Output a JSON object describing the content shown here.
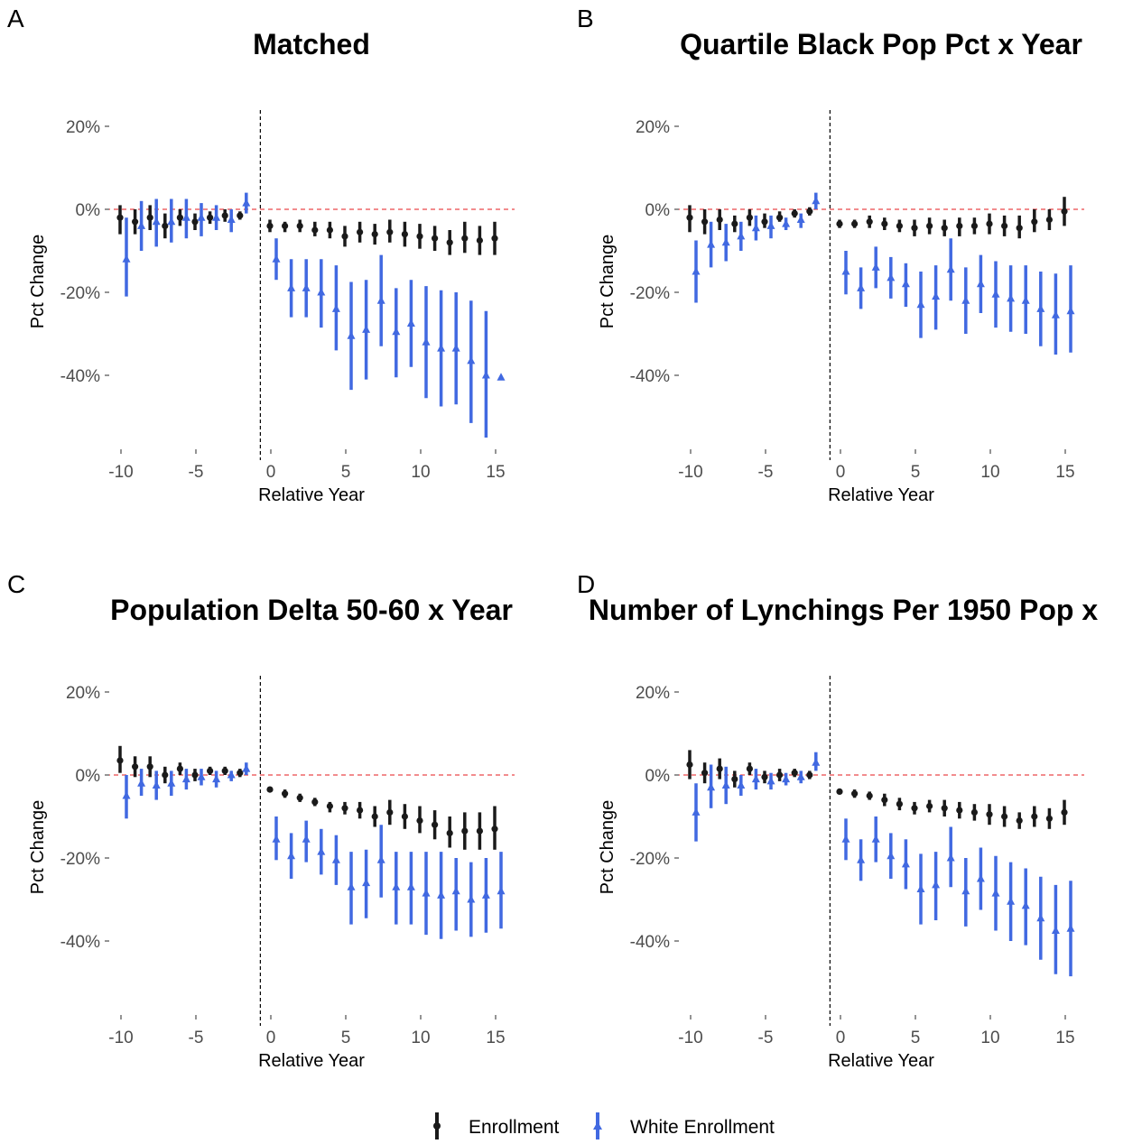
{
  "colors": {
    "enrollment": "#1a1a1a",
    "white_enrollment": "#4169e1",
    "zero_line": "#e41a1c",
    "event_line": "#000000",
    "tick": "#4d4d4d"
  },
  "legend": {
    "items": [
      {
        "label": "Enrollment",
        "color": "#1a1a1a",
        "shape": "circle"
      },
      {
        "label": "White Enrollment",
        "color": "#4169e1",
        "shape": "triangle"
      }
    ]
  },
  "chart_data": [
    {
      "panel": "A",
      "title": "Matched",
      "type": "scatter",
      "xlabel": "Relative Year",
      "ylabel": "Pct Change",
      "xlim": [
        -11,
        16
      ],
      "ylim": [
        -60,
        25
      ],
      "x_ticks": [
        -10,
        -5,
        0,
        5,
        10,
        15
      ],
      "x_tick_labels": [
        "-10",
        "-5",
        "0",
        "5",
        "10",
        "15"
      ],
      "y_ticks": [
        20,
        0,
        -20,
        -40
      ],
      "y_tick_labels": [
        "20%",
        "0%",
        "-20%",
        "-40%"
      ],
      "vline_x": -0.7,
      "hline_y": 0,
      "series": [
        {
          "name": "Enrollment",
          "x": [
            -10,
            -9,
            -8,
            -7,
            -6,
            -5,
            -4,
            -3,
            -2,
            0,
            1,
            2,
            3,
            4,
            5,
            6,
            7,
            8,
            9,
            10,
            11,
            12,
            13,
            14,
            15
          ],
          "y": [
            -2,
            -3,
            -2,
            -4,
            -2,
            -3,
            -2,
            -1.5,
            -1.5,
            -4,
            -4,
            -4,
            -5,
            -5,
            -6.5,
            -5.5,
            -6,
            -5.5,
            -6,
            -6.5,
            -7,
            -8,
            -7,
            -7.5,
            -7
          ],
          "lo": [
            -6,
            -6,
            -5,
            -7,
            -4,
            -5,
            -3.5,
            -3,
            -2.5,
            -5.5,
            -5.5,
            -5.5,
            -6.5,
            -7,
            -9,
            -8,
            -8.5,
            -8,
            -9,
            -9.5,
            -10,
            -11,
            -10.5,
            -11,
            -11
          ],
          "hi": [
            1,
            0,
            1,
            -1,
            0,
            -1,
            -0.5,
            0,
            -0.5,
            -2.5,
            -3,
            -2.5,
            -3,
            -3,
            -4,
            -3,
            -3.5,
            -2.5,
            -3,
            -3.5,
            -4,
            -5,
            -3,
            -4,
            -3
          ]
        },
        {
          "name": "White Enrollment",
          "x": [
            -10,
            -9,
            -8,
            -7,
            -6,
            -5,
            -4,
            -3,
            -2,
            0,
            1,
            2,
            3,
            4,
            5,
            6,
            7,
            8,
            9,
            10,
            11,
            12,
            13,
            14,
            15
          ],
          "y": [
            -12,
            -4,
            -3,
            -3,
            -2,
            -2,
            -2,
            -2.5,
            1.5,
            -12,
            -19,
            -19,
            -20,
            -24,
            -30.5,
            -29,
            -22,
            -29.5,
            -27.5,
            -32,
            -33.5,
            -33.5,
            -36.5,
            -40,
            -40.5
          ],
          "lo": [
            -21,
            -10,
            -9,
            -8,
            -7,
            -6.5,
            -5,
            -5.5,
            -1,
            -17,
            -26,
            -26,
            -28.5,
            -34,
            -43.5,
            -41,
            -33,
            -40.5,
            -38,
            -45.5,
            -47.5,
            -47,
            -51.5,
            -55,
            -40.5
          ],
          "hi": [
            -2,
            2,
            2.5,
            2.5,
            2.5,
            1.5,
            1,
            0,
            4,
            -7,
            -12,
            -12,
            -12,
            -13.5,
            -17.5,
            -17,
            -11,
            -19,
            -17,
            -18.5,
            -19.5,
            -20,
            -22,
            -24.5,
            -40.5
          ]
        }
      ]
    },
    {
      "panel": "B",
      "title": "Quartile Black Pop Pct x Year",
      "type": "scatter",
      "xlabel": "Relative Year",
      "ylabel": "Pct Change",
      "xlim": [
        -11,
        16
      ],
      "ylim": [
        -60,
        25
      ],
      "x_ticks": [
        -10,
        -5,
        0,
        5,
        10,
        15
      ],
      "x_tick_labels": [
        "-10",
        "-5",
        "0",
        "5",
        "10",
        "15"
      ],
      "y_ticks": [
        20,
        0,
        -20,
        -40
      ],
      "y_tick_labels": [
        "20%",
        "0%",
        "-20%",
        "-40%"
      ],
      "vline_x": -0.7,
      "hline_y": 0,
      "series": [
        {
          "name": "Enrollment",
          "x": [
            -10,
            -9,
            -8,
            -7,
            -6,
            -5,
            -4,
            -3,
            -2,
            0,
            1,
            2,
            3,
            4,
            5,
            6,
            7,
            8,
            9,
            10,
            11,
            12,
            13,
            14,
            15
          ],
          "y": [
            -2,
            -3,
            -2.5,
            -3.5,
            -2,
            -3,
            -2,
            -1,
            -0.5,
            -3.5,
            -3.5,
            -3,
            -3.5,
            -4,
            -4.5,
            -4,
            -4.5,
            -4,
            -4,
            -3.5,
            -4,
            -4.5,
            -3,
            -2.5,
            -0.5
          ],
          "lo": [
            -5.5,
            -6,
            -5,
            -5.5,
            -4,
            -4.5,
            -3,
            -2,
            -1.5,
            -4.5,
            -4.5,
            -4.5,
            -5,
            -5.5,
            -6.5,
            -6,
            -6.5,
            -6.5,
            -6,
            -6,
            -6.5,
            -7,
            -5.5,
            -5,
            -4
          ],
          "hi": [
            1,
            0,
            0,
            -1.5,
            0,
            -1,
            -0.5,
            0,
            0.5,
            -2.5,
            -2.5,
            -1.5,
            -2,
            -2.5,
            -2.5,
            -2,
            -2.5,
            -2,
            -2,
            -1,
            -1.5,
            -1.5,
            0,
            0,
            3
          ]
        },
        {
          "name": "White Enrollment",
          "x": [
            -10,
            -9,
            -8,
            -7,
            -6,
            -5,
            -4,
            -3,
            -2,
            0,
            1,
            2,
            3,
            4,
            5,
            6,
            7,
            8,
            9,
            10,
            11,
            12,
            13,
            14,
            15
          ],
          "y": [
            -15,
            -8.5,
            -8,
            -6.5,
            -4.5,
            -4,
            -3.5,
            -2.5,
            2,
            -15,
            -19,
            -14,
            -16.5,
            -18,
            -23,
            -21,
            -14.5,
            -22,
            -18,
            -20.5,
            -21.5,
            -22,
            -24,
            -25.5,
            -24.5
          ],
          "lo": [
            -22.5,
            -14,
            -12.5,
            -10,
            -7.5,
            -7,
            -5,
            -4.5,
            0,
            -20.5,
            -24,
            -19,
            -21.5,
            -23.5,
            -31,
            -29,
            -22,
            -30,
            -25,
            -28.5,
            -29.5,
            -30,
            -33,
            -35,
            -34.5
          ],
          "hi": [
            -7.5,
            -3,
            -3.5,
            -3,
            -1.5,
            -1.5,
            -2,
            -1,
            4,
            -10,
            -14,
            -9,
            -11.5,
            -13,
            -15,
            -13.5,
            -7,
            -14,
            -11,
            -12.5,
            -13.5,
            -13.5,
            -15,
            -15.5,
            -13.5
          ]
        }
      ]
    },
    {
      "panel": "C",
      "title": "Population Delta 50-60 x Year",
      "type": "scatter",
      "xlabel": "Relative Year",
      "ylabel": "Pct Change",
      "xlim": [
        -11,
        16
      ],
      "ylim": [
        -60,
        25
      ],
      "x_ticks": [
        -10,
        -5,
        0,
        5,
        10,
        15
      ],
      "x_tick_labels": [
        "-10",
        "-5",
        "0",
        "5",
        "10",
        "15"
      ],
      "y_ticks": [
        20,
        0,
        -20,
        -40
      ],
      "y_tick_labels": [
        "20%",
        "0%",
        "-20%",
        "-40%"
      ],
      "vline_x": -0.7,
      "hline_y": 0,
      "series": [
        {
          "name": "Enrollment",
          "x": [
            -10,
            -9,
            -8,
            -7,
            -6,
            -5,
            -4,
            -3,
            -2,
            0,
            1,
            2,
            3,
            4,
            5,
            6,
            7,
            8,
            9,
            10,
            11,
            12,
            13,
            14,
            15
          ],
          "y": [
            3.5,
            2,
            2,
            0,
            1.5,
            0,
            1,
            1,
            0.5,
            -3.5,
            -4.5,
            -5.5,
            -6.5,
            -7.5,
            -8,
            -8.5,
            -10,
            -9,
            -10,
            -11,
            -12,
            -14,
            -13.5,
            -13.5,
            -13
          ],
          "lo": [
            0.5,
            -0.5,
            -0.5,
            -2,
            0,
            -1.5,
            0,
            0,
            -0.5,
            -4,
            -5.5,
            -6.5,
            -7.5,
            -9,
            -9.5,
            -10.5,
            -12.5,
            -12,
            -13,
            -14,
            -15.5,
            -17.5,
            -18,
            -18,
            -18
          ],
          "hi": [
            7,
            4.5,
            4.5,
            2,
            3,
            1.5,
            2,
            2,
            1.5,
            -3,
            -3.5,
            -4.5,
            -5.5,
            -6.5,
            -6.5,
            -6.5,
            -7.5,
            -6,
            -7,
            -7.5,
            -8.5,
            -10,
            -9,
            -9,
            -7.5
          ]
        },
        {
          "name": "White Enrollment",
          "x": [
            -10,
            -9,
            -8,
            -7,
            -6,
            -5,
            -4,
            -3,
            -2,
            0,
            1,
            2,
            3,
            4,
            5,
            6,
            7,
            8,
            9,
            10,
            11,
            12,
            13,
            14,
            15
          ],
          "y": [
            -5,
            -2,
            -2.5,
            -2,
            -1,
            -0.5,
            -1,
            0,
            1.5,
            -15.5,
            -19.5,
            -15.5,
            -18.5,
            -20.5,
            -27,
            -26,
            -20.5,
            -27,
            -27,
            -28.5,
            -29,
            -28,
            -30,
            -29,
            -28
          ],
          "lo": [
            -10.5,
            -5,
            -6,
            -5,
            -3.5,
            -2.5,
            -3,
            -1.5,
            0,
            -20.5,
            -25,
            -21,
            -24,
            -26.5,
            -36,
            -34.5,
            -29.5,
            -36,
            -36,
            -38.5,
            -39.5,
            -37.5,
            -39,
            -38,
            -37
          ],
          "hi": [
            0,
            1.5,
            1,
            1,
            1.5,
            1.5,
            1,
            1,
            3,
            -10,
            -14,
            -11,
            -13,
            -14.5,
            -18.5,
            -18,
            -12,
            -18.5,
            -18.5,
            -18.5,
            -18.5,
            -20,
            -21,
            -20,
            -18.5
          ]
        }
      ]
    },
    {
      "panel": "D",
      "title": "Number of Lynchings Per 1950 Pop x",
      "type": "scatter",
      "xlabel": "Relative Year",
      "ylabel": "Pct Change",
      "xlim": [
        -11,
        16
      ],
      "ylim": [
        -60,
        25
      ],
      "x_ticks": [
        -10,
        -5,
        0,
        5,
        10,
        15
      ],
      "x_tick_labels": [
        "-10",
        "-5",
        "0",
        "5",
        "10",
        "15"
      ],
      "y_ticks": [
        20,
        0,
        -20,
        -40
      ],
      "y_tick_labels": [
        "20%",
        "0%",
        "-20%",
        "-40%"
      ],
      "vline_x": -0.7,
      "hline_y": 0,
      "series": [
        {
          "name": "Enrollment",
          "x": [
            -10,
            -9,
            -8,
            -7,
            -6,
            -5,
            -4,
            -3,
            -2,
            0,
            1,
            2,
            3,
            4,
            5,
            6,
            7,
            8,
            9,
            10,
            11,
            12,
            13,
            14,
            15
          ],
          "y": [
            2.5,
            0.5,
            1.5,
            -1,
            1.5,
            -0.5,
            0,
            0.5,
            0,
            -4,
            -4.5,
            -5,
            -6,
            -7,
            -8,
            -7.5,
            -8,
            -8.5,
            -9,
            -9.5,
            -10,
            -11,
            -10,
            -10.5,
            -9
          ],
          "lo": [
            -1,
            -2,
            -1,
            -3,
            0,
            -2,
            -1.5,
            -0.5,
            -1,
            -4.5,
            -5.5,
            -6,
            -7.5,
            -8.5,
            -9.5,
            -9,
            -10,
            -10.5,
            -11,
            -12,
            -12.5,
            -13,
            -12.5,
            -13,
            -12
          ],
          "hi": [
            6,
            3,
            4,
            1,
            3,
            1,
            1.5,
            1.5,
            1,
            -3.5,
            -3.5,
            -4,
            -4.5,
            -5.5,
            -6.5,
            -6,
            -6,
            -6.5,
            -7,
            -7,
            -7.5,
            -9,
            -7.5,
            -8,
            -6
          ]
        },
        {
          "name": "White Enrollment",
          "x": [
            -10,
            -9,
            -8,
            -7,
            -6,
            -5,
            -4,
            -3,
            -2,
            0,
            1,
            2,
            3,
            4,
            5,
            6,
            7,
            8,
            9,
            10,
            11,
            12,
            13,
            14,
            15
          ],
          "y": [
            -9,
            -3,
            -2.5,
            -2.5,
            -1,
            -1.5,
            -1,
            -0.5,
            3,
            -15.5,
            -20.5,
            -15.5,
            -19.5,
            -21.5,
            -27.5,
            -26.5,
            -20,
            -28,
            -25,
            -28.5,
            -30.5,
            -31.5,
            -34.5,
            -37.5,
            -37
          ],
          "lo": [
            -16,
            -8,
            -7,
            -5,
            -3.5,
            -3.5,
            -2.5,
            -2,
            1,
            -20.5,
            -25.5,
            -21,
            -25,
            -27.5,
            -36,
            -35,
            -27,
            -36.5,
            -32.5,
            -37.5,
            -40,
            -41,
            -44.5,
            -48,
            -48.5
          ],
          "hi": [
            -2,
            2.5,
            2,
            0,
            1.5,
            0.5,
            0.5,
            1,
            5.5,
            -10.5,
            -15.5,
            -10,
            -14,
            -15.5,
            -19,
            -18.5,
            -12.5,
            -20,
            -17.5,
            -19.5,
            -21,
            -22.5,
            -24.5,
            -26.5,
            -25.5
          ]
        }
      ]
    }
  ]
}
